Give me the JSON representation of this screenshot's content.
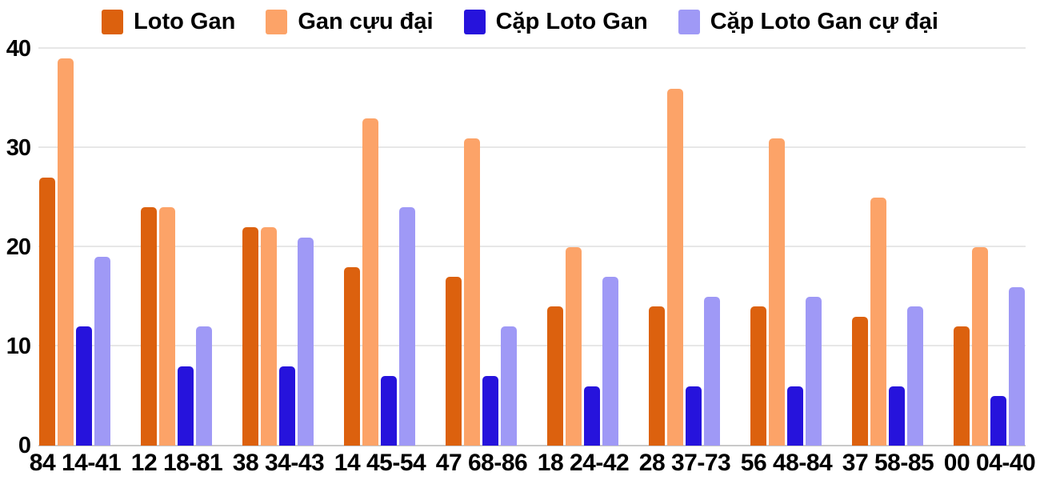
{
  "chart_data": {
    "type": "bar",
    "title": "",
    "xlabel": "",
    "ylabel": "",
    "ylim": [
      0,
      40
    ],
    "yticks": [
      0,
      10,
      20,
      30,
      40
    ],
    "grid": true,
    "legend_position": "top",
    "background_color": "#ffffff",
    "gridline_color": "#e7e7e7",
    "axis_line_color": "#c9c9c9",
    "text_color": "#000000",
    "categories": [
      "84 14-41",
      "12 18-81",
      "38 34-43",
      "14 45-54",
      "47 68-86",
      "18 24-42",
      "28 37-73",
      "56 48-84",
      "37 58-85",
      "00 04-40"
    ],
    "series": [
      {
        "name": "Loto Gan",
        "color": "#dc610e",
        "values": [
          27,
          24,
          22,
          18,
          17,
          14,
          14,
          14,
          13,
          12
        ]
      },
      {
        "name": "Gan cựu đại",
        "color": "#fca368",
        "values": [
          39,
          24,
          22,
          33,
          31,
          20,
          36,
          31,
          25,
          20
        ]
      },
      {
        "name": "Cặp Loto Gan",
        "color": "#2613dc",
        "values": [
          12,
          8,
          8,
          7,
          7,
          6,
          6,
          6,
          6,
          5
        ]
      },
      {
        "name": "Cặp Loto Gan cự đại",
        "color": "#9f99f6",
        "values": [
          19,
          12,
          21,
          24,
          12,
          17,
          15,
          15,
          14,
          16
        ]
      }
    ]
  },
  "legend": {
    "items": [
      {
        "label": "Loto Gan",
        "color": "#dc610e"
      },
      {
        "label": "Gan cựu đại",
        "color": "#fca368"
      },
      {
        "label": "Cặp Loto Gan",
        "color": "#2613dc"
      },
      {
        "label": "Cặp Loto Gan cự đại",
        "color": "#9f99f6"
      }
    ]
  }
}
